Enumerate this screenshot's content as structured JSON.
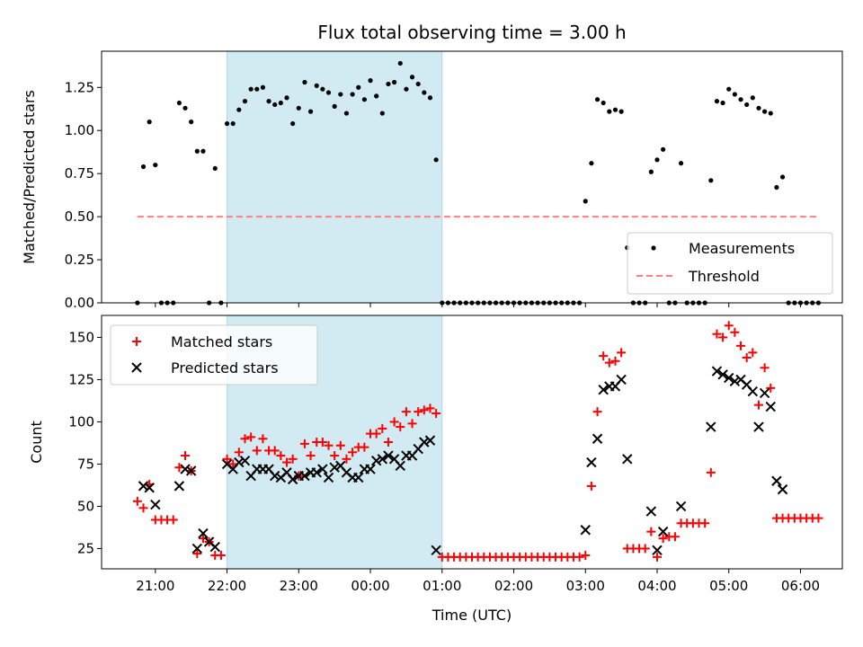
{
  "chart_data": [
    {
      "type": "scatter",
      "title": "Flux total observing time = 3.00 h",
      "xlabel": "",
      "ylabel": "Matched/Predicted stars",
      "ylim": [
        0,
        1.46
      ],
      "xlim": [
        "20:15",
        "06:35"
      ],
      "y_ticks": [
        "0.00",
        "0.25",
        "0.50",
        "0.75",
        "1.00",
        "1.25"
      ],
      "shaded_region": {
        "start": "22:00",
        "end": "01:00",
        "color": "#add8e6"
      },
      "legend": {
        "position": "lower-right",
        "entries": [
          "Measurements",
          "Threshold"
        ]
      },
      "threshold": {
        "name": "Threshold",
        "y": 0.5,
        "x_start": "20:45",
        "x_end": "06:15",
        "color": "#ff7f7f"
      },
      "series": [
        {
          "name": "Measurements",
          "color": "#000000",
          "x": [
            "20:45",
            "20:50",
            "20:55",
            "21:00",
            "21:05",
            "21:10",
            "21:15",
            "21:20",
            "21:25",
            "21:30",
            "21:35",
            "21:40",
            "21:45",
            "21:50",
            "21:55",
            "22:00",
            "22:05",
            "22:10",
            "22:15",
            "22:20",
            "22:25",
            "22:30",
            "22:35",
            "22:40",
            "22:45",
            "22:50",
            "22:55",
            "23:00",
            "23:05",
            "23:10",
            "23:15",
            "23:20",
            "23:25",
            "23:30",
            "23:35",
            "23:40",
            "23:45",
            "23:50",
            "23:55",
            "00:00",
            "00:05",
            "00:10",
            "00:15",
            "00:20",
            "00:25",
            "00:30",
            "00:35",
            "00:40",
            "00:45",
            "00:50",
            "00:55",
            "01:00",
            "01:05",
            "01:10",
            "01:15",
            "01:20",
            "01:25",
            "01:30",
            "01:35",
            "01:40",
            "01:45",
            "01:50",
            "01:55",
            "02:00",
            "02:05",
            "02:10",
            "02:15",
            "02:20",
            "02:25",
            "02:30",
            "02:35",
            "02:40",
            "02:45",
            "02:50",
            "02:55",
            "03:00",
            "03:05",
            "03:10",
            "03:15",
            "03:20",
            "03:25",
            "03:30",
            "03:35",
            "03:40",
            "03:45",
            "03:50",
            "03:55",
            "04:00",
            "04:05",
            "04:10",
            "04:15",
            "04:20",
            "04:25",
            "04:30",
            "04:35",
            "04:40",
            "04:45",
            "04:50",
            "04:55",
            "05:00",
            "05:05",
            "05:10",
            "05:15",
            "05:20",
            "05:25",
            "05:30",
            "05:35",
            "05:40",
            "05:45",
            "05:50",
            "05:55",
            "06:00",
            "06:05",
            "06:10",
            "06:15"
          ],
          "y": [
            0.0,
            0.79,
            1.05,
            0.8,
            0.0,
            0.0,
            0.0,
            1.16,
            1.13,
            1.05,
            0.88,
            0.88,
            0.0,
            0.78,
            0.0,
            1.04,
            1.04,
            1.12,
            1.17,
            1.24,
            1.24,
            1.25,
            1.17,
            1.15,
            1.16,
            1.19,
            1.04,
            1.13,
            1.28,
            1.11,
            1.26,
            1.24,
            1.22,
            1.14,
            1.21,
            1.1,
            1.21,
            1.25,
            1.18,
            1.29,
            1.2,
            1.1,
            1.27,
            1.28,
            1.39,
            1.24,
            1.31,
            1.27,
            1.22,
            1.19,
            0.83,
            0.0,
            0.0,
            0.0,
            0.0,
            0.0,
            0.0,
            0.0,
            0.0,
            0.0,
            0.0,
            0.0,
            0.0,
            0.0,
            0.0,
            0.0,
            0.0,
            0.0,
            0.0,
            0.0,
            0.0,
            0.0,
            0.0,
            0.0,
            0.0,
            0.59,
            0.81,
            1.18,
            1.16,
            1.11,
            1.12,
            1.11,
            0.32,
            0.0,
            0.0,
            0.0,
            0.76,
            0.83,
            0.89,
            0.0,
            0.0,
            0.81,
            0.0,
            0.0,
            0.0,
            0.0,
            0.71,
            1.17,
            1.16,
            1.24,
            1.21,
            1.18,
            1.15,
            1.19,
            1.13,
            1.11,
            1.1,
            0.67,
            0.73,
            0.0,
            0.0,
            0.0,
            0.0,
            0.0,
            0.0
          ]
        }
      ]
    },
    {
      "type": "scatter",
      "title": "",
      "xlabel": "Time (UTC)",
      "ylabel": "Count",
      "ylim": [
        13,
        163
      ],
      "xlim": [
        "20:15",
        "06:35"
      ],
      "x_ticks": [
        "21:00",
        "22:00",
        "23:00",
        "00:00",
        "01:00",
        "02:00",
        "03:00",
        "04:00",
        "05:00",
        "06:00"
      ],
      "y_ticks": [
        "25",
        "50",
        "75",
        "100",
        "125",
        "150"
      ],
      "shaded_region": {
        "start": "22:00",
        "end": "01:00",
        "color": "#add8e6"
      },
      "legend": {
        "position": "upper-left",
        "entries": [
          "Matched stars",
          "Predicted stars"
        ]
      },
      "series": [
        {
          "name": "Matched stars",
          "color": "#ff0000",
          "marker": "plus",
          "y": [
            53,
            49,
            63,
            42,
            42,
            42,
            42,
            73,
            80,
            71,
            22,
            31,
            29,
            21,
            21,
            78,
            75,
            82,
            90,
            91,
            83,
            90,
            83,
            83,
            80,
            76,
            78,
            68,
            87,
            80,
            88,
            88,
            86,
            80,
            86,
            78,
            82,
            85,
            85,
            93,
            93,
            96,
            88,
            100,
            97,
            106,
            99,
            106,
            107,
            108,
            105,
            20,
            20,
            20,
            20,
            20,
            20,
            20,
            20,
            20,
            20,
            20,
            20,
            20,
            20,
            20,
            20,
            20,
            20,
            20,
            20,
            20,
            20,
            20,
            20,
            21,
            62,
            106,
            139,
            135,
            136,
            141,
            25,
            25,
            25,
            25,
            35,
            20,
            31,
            32,
            32,
            40,
            40,
            40,
            40,
            40,
            70,
            152,
            150,
            157,
            153,
            145,
            138,
            141,
            110,
            132,
            120,
            43,
            43,
            43,
            43,
            43,
            43,
            43,
            43
          ]
        },
        {
          "name": "Predicted stars",
          "color": "#000000",
          "marker": "x",
          "y": [
            null,
            62,
            61,
            51,
            null,
            null,
            null,
            62,
            72,
            71,
            25,
            34,
            29,
            26,
            null,
            75,
            72,
            76,
            77,
            68,
            72,
            72,
            72,
            68,
            67,
            70,
            66,
            68,
            68,
            70,
            70,
            72,
            67,
            73,
            74,
            70,
            67,
            67,
            72,
            72,
            77,
            78,
            80,
            78,
            74,
            80,
            80,
            84,
            88,
            89,
            24,
            null,
            null,
            null,
            null,
            null,
            null,
            null,
            null,
            null,
            null,
            null,
            null,
            null,
            null,
            null,
            null,
            null,
            null,
            null,
            null,
            null,
            null,
            null,
            null,
            36,
            76,
            90,
            119,
            121,
            121,
            125,
            78,
            null,
            null,
            null,
            47,
            24,
            35,
            null,
            null,
            50,
            null,
            null,
            null,
            null,
            97,
            130,
            128,
            126,
            124,
            125,
            122,
            118,
            97,
            117,
            109,
            65,
            60,
            null,
            null,
            null,
            null,
            null,
            null
          ]
        }
      ]
    }
  ]
}
